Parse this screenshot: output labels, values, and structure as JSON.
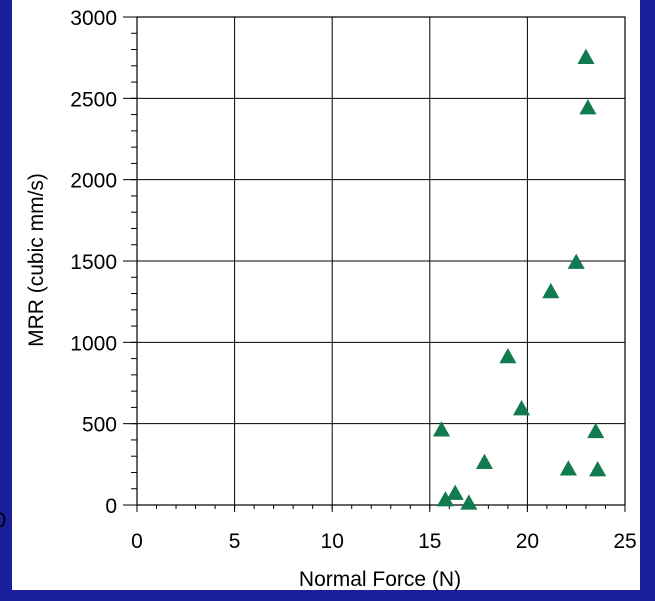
{
  "chart_data": {
    "type": "scatter",
    "title": "",
    "xlabel": "Normal Force (N)",
    "ylabel": "MRR (cubic mm/s)",
    "xlim": [
      0,
      25
    ],
    "ylim": [
      0,
      3000
    ],
    "xticks": [
      0,
      5,
      10,
      15,
      20,
      25
    ],
    "yticks": [
      0,
      500,
      1000,
      1500,
      2000,
      2500,
      3000
    ],
    "grid": true,
    "marker": "triangle",
    "marker_color": "#127a4f",
    "series": [
      {
        "points": [
          {
            "x": 15.6,
            "y": 460
          },
          {
            "x": 15.8,
            "y": 30
          },
          {
            "x": 16.3,
            "y": 70
          },
          {
            "x": 17.0,
            "y": 10
          },
          {
            "x": 17.8,
            "y": 260
          },
          {
            "x": 19.0,
            "y": 910
          },
          {
            "x": 19.7,
            "y": 590
          },
          {
            "x": 21.2,
            "y": 1310
          },
          {
            "x": 22.1,
            "y": 220
          },
          {
            "x": 22.5,
            "y": 1490
          },
          {
            "x": 23.0,
            "y": 2750
          },
          {
            "x": 23.1,
            "y": 2440
          },
          {
            "x": 23.5,
            "y": 450
          },
          {
            "x": 23.6,
            "y": 215
          }
        ]
      }
    ]
  },
  "stray_label": "0"
}
